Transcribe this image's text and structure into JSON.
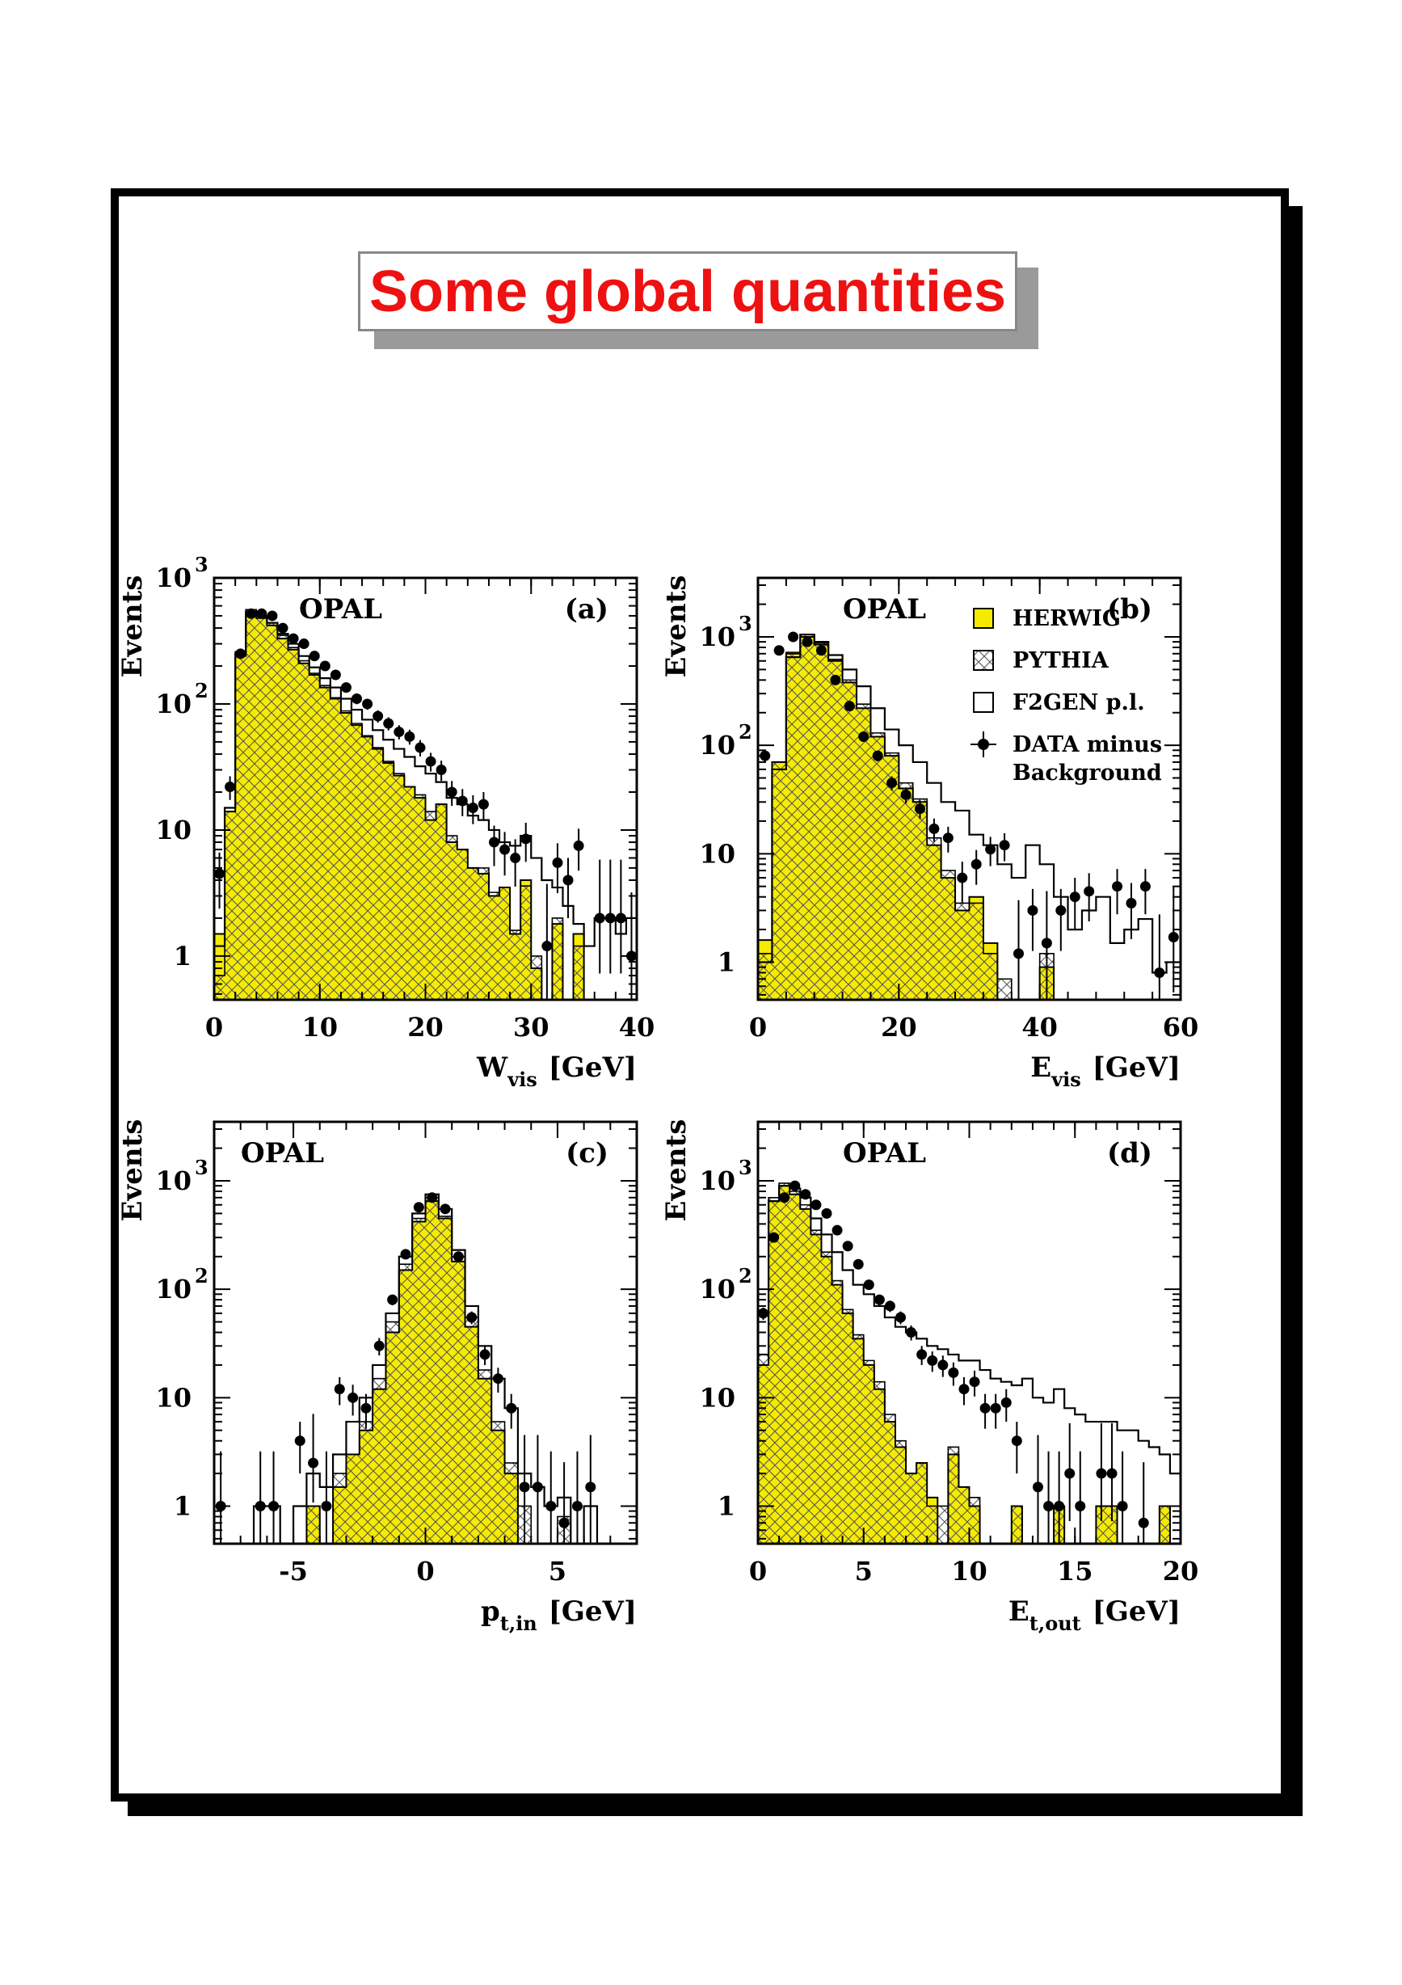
{
  "page": {
    "title": "Some global quantities"
  },
  "colors": {
    "herwig_fill": "#f5eb00",
    "title_red": "#ee1111",
    "shadow": "#9a9a9a"
  },
  "legend": [
    {
      "label": "HERWIG",
      "style": "yellow-box"
    },
    {
      "label": "PYTHIA",
      "style": "hatched-box"
    },
    {
      "label": "F2GEN p.l.",
      "style": "open-box"
    },
    {
      "label": "DATA minus",
      "label2": "Background",
      "style": "data-point"
    }
  ],
  "chart_data": [
    {
      "id": "a",
      "type": "bar",
      "panel_label": "(a)",
      "experiment_label": "OPAL",
      "xlabel": "W",
      "xlabel_sub": "vis",
      "xlabel_unit": "[GeV]",
      "ylabel": "Events",
      "log_y": true,
      "xlim": [
        0,
        40
      ],
      "ylim": [
        0.45,
        1000
      ],
      "x_ticks": [
        0,
        10,
        20,
        30,
        40
      ],
      "x_tick_labels": [
        "0",
        "10",
        "20",
        "30",
        "40"
      ],
      "y_tick_labels": [
        "1",
        "10",
        "10 2",
        "10 3"
      ],
      "bin_edges": [
        0,
        1,
        2,
        3,
        4,
        5,
        6,
        7,
        8,
        9,
        10,
        11,
        12,
        13,
        14,
        15,
        16,
        17,
        18,
        19,
        20,
        21,
        22,
        23,
        24,
        25,
        26,
        27,
        28,
        29,
        30,
        31,
        32,
        33,
        34,
        35,
        36,
        37,
        38,
        39,
        40
      ],
      "series": [
        {
          "name": "HERWIG",
          "values": [
            1.5,
            14,
            240,
            520,
            480,
            420,
            330,
            270,
            210,
            170,
            135,
            110,
            85,
            68,
            55,
            44,
            34,
            27,
            22,
            18,
            12,
            16,
            8,
            7,
            5,
            4.5,
            3,
            3.5,
            1.5,
            4,
            0.8,
            0.45,
            1.8,
            0.45,
            1.5,
            0.45,
            0.45,
            0.45,
            0.45,
            0.45
          ]
        },
        {
          "name": "PYTHIA",
          "values": [
            0.7,
            14,
            260,
            560,
            500,
            440,
            350,
            280,
            220,
            175,
            140,
            112,
            88,
            70,
            56,
            45,
            35,
            28,
            22,
            19,
            14,
            16,
            9,
            7,
            5,
            5,
            3.2,
            3.5,
            1.6,
            3.6,
            1,
            0.45,
            2,
            0.45,
            1.2,
            0.45,
            0.45,
            0.45,
            0.45,
            0.45
          ]
        },
        {
          "name": "F2GEN p.l.",
          "values": [
            1.2,
            15,
            250,
            540,
            500,
            440,
            360,
            300,
            240,
            195,
            160,
            135,
            110,
            90,
            75,
            62,
            52,
            44,
            38,
            32,
            28,
            24,
            18,
            16,
            13,
            12,
            10,
            8,
            7.5,
            9,
            6,
            4,
            3.5,
            2.5,
            1.8,
            1.2,
            2,
            2,
            1.5,
            2
          ]
        },
        {
          "name": "DATA minus Background",
          "x": [
            0.5,
            1.5,
            2.5,
            3.5,
            4.5,
            5.5,
            6.5,
            7.5,
            8.5,
            9.5,
            10.5,
            11.5,
            12.5,
            13.5,
            14.5,
            15.5,
            16.5,
            17.5,
            18.5,
            19.5,
            20.5,
            21.5,
            22.5,
            23.5,
            24.5,
            25.5,
            26.5,
            27.5,
            28.5,
            29.5,
            31.5,
            32.5,
            33.5,
            34.5,
            36.5,
            37.5,
            38.5,
            39.5
          ],
          "values": [
            4.5,
            22,
            250,
            520,
            520,
            500,
            400,
            330,
            300,
            240,
            200,
            170,
            135,
            110,
            100,
            80,
            70,
            60,
            55,
            45,
            35,
            30,
            20,
            17,
            15,
            16,
            8,
            7,
            6,
            8.5,
            1.2,
            5.5,
            4,
            7.5,
            2,
            2,
            2,
            1
          ]
        }
      ]
    },
    {
      "id": "b",
      "type": "bar",
      "panel_label": "(b)",
      "experiment_label": "OPAL",
      "xlabel": "E",
      "xlabel_sub": "vis",
      "xlabel_unit": "[GeV]",
      "ylabel": "Events",
      "log_y": true,
      "xlim": [
        0,
        60
      ],
      "ylim": [
        0.45,
        3500
      ],
      "x_ticks": [
        0,
        20,
        40,
        60
      ],
      "x_tick_labels": [
        "0",
        "20",
        "40",
        "60"
      ],
      "y_tick_labels": [
        "1",
        "10",
        "10 2",
        "10 3"
      ],
      "bin_edges": [
        0,
        2,
        4,
        6,
        8,
        10,
        12,
        14,
        16,
        18,
        20,
        22,
        24,
        26,
        28,
        30,
        32,
        34,
        36,
        38,
        40,
        42,
        44,
        46,
        48,
        50,
        52,
        54,
        56,
        58,
        60
      ],
      "series": [
        {
          "name": "HERWIG",
          "values": [
            1.6,
            70,
            700,
            1000,
            850,
            600,
            380,
            220,
            120,
            80,
            40,
            30,
            12,
            6,
            3,
            4,
            1.5,
            0.45,
            0.45,
            0.45,
            0.9,
            0.45,
            0.45,
            0.45,
            0.45,
            0.45,
            0.45,
            0.45,
            0.45,
            0.45
          ]
        },
        {
          "name": "PYTHIA",
          "values": [
            1.2,
            70,
            720,
            1050,
            880,
            620,
            400,
            240,
            130,
            85,
            45,
            32,
            14,
            7,
            3.5,
            3.5,
            1.2,
            0.7,
            0.45,
            0.45,
            1.2,
            0.45,
            0.45,
            0.45,
            0.45,
            0.45,
            0.45,
            0.45,
            0.45,
            0.45
          ]
        },
        {
          "name": "F2GEN p.l.",
          "values": [
            1,
            60,
            650,
            1050,
            900,
            680,
            500,
            350,
            220,
            140,
            100,
            70,
            45,
            30,
            25,
            15,
            12,
            8,
            6,
            12,
            8,
            4,
            2,
            3,
            4,
            1.5,
            2,
            2.5,
            0.8,
            1
          ]
        },
        {
          "name": "DATA minus Background",
          "x": [
            1,
            3,
            5,
            7,
            9,
            11,
            13,
            15,
            17,
            19,
            21,
            23,
            25,
            27,
            29,
            31,
            33,
            35,
            37,
            39,
            41,
            43,
            45,
            47,
            51,
            53,
            55,
            57,
            59
          ],
          "values": [
            80,
            750,
            1000,
            900,
            750,
            400,
            230,
            120,
            80,
            45,
            35,
            26,
            17,
            14,
            6,
            8,
            11,
            12,
            1.2,
            3,
            1.5,
            3,
            4,
            4.5,
            5,
            3.5,
            5,
            0.8,
            1.7
          ]
        }
      ]
    },
    {
      "id": "c",
      "type": "bar",
      "panel_label": "(c)",
      "experiment_label": "OPAL",
      "xlabel": "p",
      "xlabel_sub": "t,in",
      "xlabel_unit": "[GeV]",
      "ylabel": "Events",
      "log_y": true,
      "xlim": [
        -8,
        8
      ],
      "ylim": [
        0.45,
        3500
      ],
      "x_ticks": [
        -5,
        0,
        5
      ],
      "x_tick_labels": [
        "-5",
        "0",
        "5"
      ],
      "y_tick_labels": [
        "1",
        "10",
        "10 2",
        "10 3"
      ],
      "bin_edges": [
        -8,
        -7.5,
        -7,
        -6.5,
        -6,
        -5.5,
        -5,
        -4.5,
        -4,
        -3.5,
        -3,
        -2.5,
        -2,
        -1.5,
        -1,
        -0.5,
        0,
        0.5,
        1,
        1.5,
        2,
        2.5,
        3,
        3.5,
        4,
        4.5,
        5,
        5.5,
        6,
        6.5,
        7,
        7.5,
        8
      ],
      "series": [
        {
          "name": "HERWIG",
          "values": [
            0.45,
            0.45,
            0.45,
            0.45,
            0.45,
            0.45,
            0.45,
            1,
            0.45,
            1.5,
            3,
            5,
            12,
            40,
            150,
            420,
            650,
            450,
            180,
            45,
            15,
            5,
            2,
            0.45,
            0.45,
            0.45,
            0.45,
            0.45,
            0.45,
            0.45,
            0.45,
            0.45
          ]
        },
        {
          "name": "PYTHIA",
          "values": [
            0.45,
            0.45,
            0.45,
            0.45,
            0.45,
            0.45,
            0.45,
            1,
            0.45,
            2,
            3,
            6,
            15,
            50,
            170,
            450,
            700,
            470,
            200,
            55,
            18,
            6,
            2.5,
            1,
            0.45,
            0.45,
            0.8,
            0.45,
            0.45,
            0.45,
            0.45,
            0.45
          ]
        },
        {
          "name": "F2GEN p.l.",
          "values": [
            0.45,
            0.45,
            0.45,
            1,
            1,
            0.45,
            1,
            2,
            1.5,
            3,
            6,
            10,
            20,
            60,
            200,
            500,
            750,
            550,
            230,
            70,
            30,
            15,
            8,
            2,
            1.5,
            1,
            1.2,
            0.45,
            1,
            0.45,
            0.45,
            0.45
          ]
        },
        {
          "name": "DATA minus Background",
          "x": [
            -7.75,
            -6.25,
            -5.75,
            -4.75,
            -4.25,
            -3.75,
            -3.25,
            -2.75,
            -2.25,
            -1.75,
            -1.25,
            -0.75,
            -0.25,
            0.25,
            0.75,
            1.25,
            1.75,
            2.25,
            2.75,
            3.25,
            3.75,
            4.25,
            4.75,
            5.25,
            5.75,
            6.25
          ],
          "values": [
            1,
            1,
            1,
            4,
            2.5,
            1,
            12,
            10,
            8,
            30,
            80,
            210,
            570,
            700,
            550,
            200,
            55,
            25,
            15,
            8,
            1.5,
            1.5,
            1,
            0.7,
            1,
            1.5
          ]
        }
      ]
    },
    {
      "id": "d",
      "type": "bar",
      "panel_label": "(d)",
      "experiment_label": "OPAL",
      "xlabel": "E",
      "xlabel_sub": "t,out",
      "xlabel_unit": "[GeV]",
      "ylabel": "Events",
      "log_y": true,
      "xlim": [
        0,
        20
      ],
      "ylim": [
        0.45,
        3500
      ],
      "x_ticks": [
        0,
        5,
        10,
        15,
        20
      ],
      "x_tick_labels": [
        "0",
        "5",
        "10",
        "15",
        "20"
      ],
      "y_tick_labels": [
        "1",
        "10",
        "10 2",
        "10 3"
      ],
      "bin_edges": [
        0,
        0.5,
        1,
        1.5,
        2,
        2.5,
        3,
        3.5,
        4,
        4.5,
        5,
        5.5,
        6,
        6.5,
        7,
        7.5,
        8,
        8.5,
        9,
        9.5,
        10,
        10.5,
        11,
        11.5,
        12,
        12.5,
        13,
        13.5,
        14,
        14.5,
        15,
        15.5,
        16,
        16.5,
        17,
        17.5,
        18,
        18.5,
        19,
        19.5,
        20
      ],
      "series": [
        {
          "name": "HERWIG",
          "values": [
            20,
            650,
            900,
            750,
            550,
            320,
            200,
            110,
            60,
            35,
            20,
            12,
            6,
            3.5,
            2,
            2.5,
            1.2,
            0.45,
            3,
            1.5,
            1,
            0.45,
            0.45,
            0.45,
            1,
            0.45,
            0.45,
            0.45,
            1,
            0.45,
            0.45,
            0.45,
            1,
            1,
            0.45,
            0.45,
            0.45,
            0.45,
            1,
            0.45
          ]
        },
        {
          "name": "PYTHIA",
          "values": [
            25,
            700,
            950,
            800,
            600,
            350,
            220,
            120,
            65,
            38,
            22,
            14,
            7,
            4,
            2,
            2.5,
            1,
            1,
            3.5,
            1.5,
            1.2,
            0.45,
            0.45,
            0.45,
            1,
            0.45,
            0.45,
            0.45,
            1,
            0.45,
            0.45,
            0.45,
            1,
            1,
            0.45,
            0.45,
            0.45,
            0.45,
            1,
            0.45
          ]
        },
        {
          "name": "F2GEN p.l.",
          "values": [
            25,
            650,
            900,
            850,
            700,
            450,
            320,
            220,
            150,
            110,
            90,
            70,
            55,
            45,
            40,
            35,
            30,
            28,
            25,
            22,
            22,
            18,
            15,
            14,
            13,
            15,
            10,
            9,
            12,
            8,
            7,
            6,
            6,
            6,
            5,
            5,
            4,
            3.5,
            3,
            2
          ]
        },
        {
          "name": "DATA minus Background",
          "x": [
            0.25,
            0.75,
            1.25,
            1.75,
            2.25,
            2.75,
            3.25,
            3.75,
            4.25,
            4.75,
            5.25,
            5.75,
            6.25,
            6.75,
            7.25,
            7.75,
            8.25,
            8.75,
            9.25,
            9.75,
            10.25,
            10.75,
            11.25,
            11.75,
            12.25,
            13.25,
            13.75,
            14.25,
            14.75,
            15.25,
            16.25,
            16.75,
            17.25,
            18.25
          ],
          "values": [
            60,
            300,
            700,
            900,
            750,
            600,
            500,
            350,
            250,
            170,
            110,
            80,
            70,
            55,
            40,
            25,
            22,
            20,
            17,
            12,
            14,
            8,
            8,
            9,
            4,
            1.5,
            1,
            1,
            2,
            1,
            2,
            2,
            1,
            0.7
          ]
        }
      ]
    }
  ]
}
